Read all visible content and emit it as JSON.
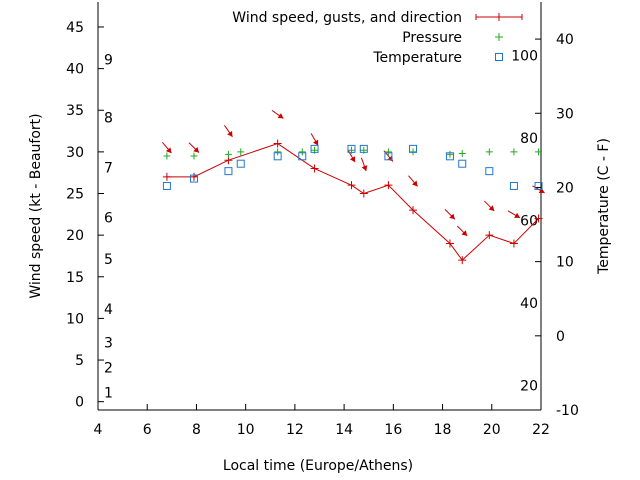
{
  "chart_data": {
    "type": "line",
    "xlabel": "Local time (Europe/Athens)",
    "ylabel": "Wind speed (kt - Beaufort)",
    "y2label": "Temperature (C - F)",
    "xlim": [
      4,
      22
    ],
    "ylim": [
      -1,
      48
    ],
    "y2lim": [
      -10,
      45
    ],
    "x_ticks": [
      "4",
      "6",
      "8",
      "10",
      "12",
      "14",
      "16",
      "18",
      "20",
      "22"
    ],
    "y_ticks": [
      "0",
      "5",
      "10",
      "15",
      "20",
      "25",
      "30",
      "35",
      "40",
      "45"
    ],
    "y2_ticks": [
      "-10",
      "0",
      "10",
      "20",
      "30",
      "40"
    ],
    "beaufort_labels": [
      "1",
      "2",
      "3",
      "4",
      "5",
      "6",
      "7",
      "8",
      "9"
    ],
    "fahrenheit_labels": [
      "20",
      "40",
      "60",
      "80",
      "100"
    ],
    "legend": {
      "position": "top-right",
      "entries": [
        "Wind speed, gusts, and direction",
        "Pressure",
        "Temperature"
      ]
    },
    "series": [
      {
        "name": "Wind speed, gusts, and direction",
        "color": "#cc0000",
        "x": [
          6.8,
          7.9,
          9.3,
          11.3,
          12.8,
          14.3,
          14.8,
          15.8,
          16.8,
          18.3,
          18.8,
          19.9,
          20.9,
          21.9
        ],
        "values": [
          27,
          27,
          29,
          31,
          28,
          26,
          25,
          26,
          23,
          19,
          17,
          20,
          19,
          22
        ],
        "direction_deg": [
          320,
          315,
          325,
          305,
          330,
          330,
          340,
          320,
          320,
          315,
          315,
          315,
          300,
          300
        ]
      },
      {
        "name": "Pressure",
        "color": "#22aa22",
        "x": [
          6.8,
          7.9,
          9.3,
          9.8,
          11.3,
          12.3,
          12.8,
          14.3,
          14.8,
          15.8,
          16.8,
          18.3,
          18.8,
          19.9,
          20.9,
          21.9
        ],
        "values": [
          29.5,
          29.5,
          29.7,
          30,
          30,
          30,
          30.2,
          30.2,
          30.2,
          30,
          30,
          29.7,
          29.8,
          30,
          30,
          30
        ]
      },
      {
        "name": "Temperature",
        "color": "#2277cc",
        "x": [
          6.8,
          7.9,
          9.3,
          9.8,
          11.3,
          12.3,
          12.8,
          14.3,
          14.8,
          15.8,
          16.8,
          18.3,
          18.8,
          19.9,
          20.9,
          21.9
        ],
        "values": [
          20.2,
          21.2,
          22.2,
          23.2,
          24.2,
          24.2,
          25.2,
          25.2,
          25.2,
          24.2,
          25.2,
          24.2,
          23.2,
          22.2,
          20.2,
          20.2
        ]
      }
    ]
  }
}
